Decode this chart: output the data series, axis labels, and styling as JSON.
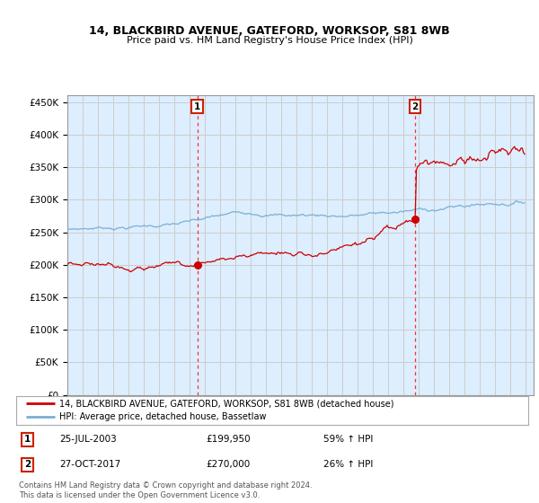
{
  "title": "14, BLACKBIRD AVENUE, GATEFORD, WORKSOP, S81 8WB",
  "subtitle": "Price paid vs. HM Land Registry's House Price Index (HPI)",
  "ylim": [
    0,
    460000
  ],
  "yticks": [
    0,
    50000,
    100000,
    150000,
    200000,
    250000,
    300000,
    350000,
    400000,
    450000
  ],
  "ytick_labels": [
    "£0",
    "£50K",
    "£100K",
    "£150K",
    "£200K",
    "£250K",
    "£300K",
    "£350K",
    "£400K",
    "£450K"
  ],
  "red_line_color": "#cc0000",
  "blue_line_color": "#7bafd4",
  "grid_color": "#cccccc",
  "background_color": "#ddeeff",
  "t1_idx": 102,
  "t1_price": 199950,
  "t2_idx": 273,
  "t2_price": 270000,
  "transaction1_date": "25-JUL-2003",
  "transaction1_price": "£199,950",
  "transaction1_hpi": "59% ↑ HPI",
  "transaction2_date": "27-OCT-2017",
  "transaction2_price": "£270,000",
  "transaction2_hpi": "26% ↑ HPI",
  "legend_label1": "14, BLACKBIRD AVENUE, GATEFORD, WORKSOP, S81 8WB (detached house)",
  "legend_label2": "HPI: Average price, detached house, Bassetlaw",
  "footer": "Contains HM Land Registry data © Crown copyright and database right 2024.\nThis data is licensed under the Open Government Licence v3.0."
}
